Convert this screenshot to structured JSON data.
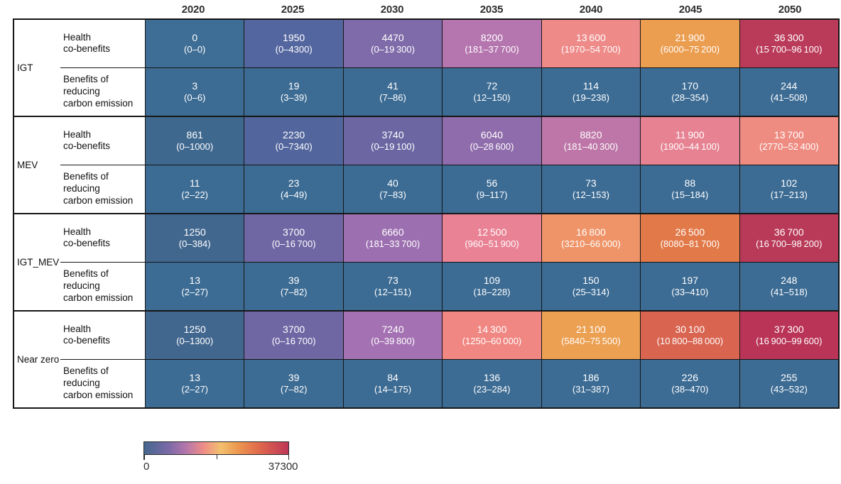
{
  "chart_data": {
    "type": "heatmap",
    "title": "",
    "columns": [
      "2020",
      "2025",
      "2030",
      "2035",
      "2040",
      "2045",
      "2050"
    ],
    "row_groups": [
      {
        "label": "IGT",
        "rows": [
          {
            "label": "Health co-benefits",
            "label_lines": [
              "Health",
              "co-benefits"
            ],
            "cells": [
              {
                "v": 0,
                "value": "0",
                "range": "(0–0)",
                "color": "#3E6D95"
              },
              {
                "v": 1950,
                "value": "1950",
                "range": "(0–4300)",
                "color": "#54669F"
              },
              {
                "v": 4470,
                "value": "4470",
                "range": "(0–19 300)",
                "color": "#7F6BA9"
              },
              {
                "v": 8200,
                "value": "8200",
                "range": "(181–37 700)",
                "color": "#B575AF"
              },
              {
                "v": 13600,
                "value": "13 600",
                "range": "(1970–54 700)",
                "color": "#EE8B89"
              },
              {
                "v": 21900,
                "value": "21 900",
                "range": "(6000–75 200)",
                "color": "#EB9D50"
              },
              {
                "v": 36300,
                "value": "36 300",
                "range": "(15 700–96 100)",
                "color": "#BA3A59"
              }
            ]
          },
          {
            "label": "Benefits of reducing carbon emission",
            "label_lines": [
              "Benefits of",
              "reducing",
              "carbon emission"
            ],
            "cells": [
              {
                "v": 3,
                "value": "3",
                "range": "(0–6)",
                "color": "#3C6B93"
              },
              {
                "v": 19,
                "value": "19",
                "range": "(3–39)",
                "color": "#3C6B93"
              },
              {
                "v": 41,
                "value": "41",
                "range": "(7–86)",
                "color": "#3C6B93"
              },
              {
                "v": 72,
                "value": "72",
                "range": "(12–150)",
                "color": "#3C6B93"
              },
              {
                "v": 114,
                "value": "114",
                "range": "(19–238)",
                "color": "#3C6B93"
              },
              {
                "v": 170,
                "value": "170",
                "range": "(28–354)",
                "color": "#3C6B93"
              },
              {
                "v": 244,
                "value": "244",
                "range": "(41–508)",
                "color": "#3C6B93"
              }
            ]
          }
        ]
      },
      {
        "label": "MEV",
        "rows": [
          {
            "label": "Health co-benefits",
            "label_lines": [
              "Health",
              "co-benefits"
            ],
            "cells": [
              {
                "v": 861,
                "value": "861",
                "range": "(0–1000)",
                "color": "#3F688F"
              },
              {
                "v": 2230,
                "value": "2230",
                "range": "(0–7340)",
                "color": "#52659D"
              },
              {
                "v": 3740,
                "value": "3740",
                "range": "(0–19 100)",
                "color": "#6C67A3"
              },
              {
                "v": 6040,
                "value": "6040",
                "range": "(0–28 600)",
                "color": "#8F6CAB"
              },
              {
                "v": 8820,
                "value": "8820",
                "range": "(181–40 300)",
                "color": "#BD76A7"
              },
              {
                "v": 11900,
                "value": "11 900",
                "range": "(1900–44 100)",
                "color": "#E68292"
              },
              {
                "v": 13700,
                "value": "13 700",
                "range": "(2770–52 400)",
                "color": "#EF8C82"
              }
            ]
          },
          {
            "label": "Benefits of reducing carbon emission",
            "label_lines": [
              "Benefits of",
              "reducing",
              "carbon emission"
            ],
            "cells": [
              {
                "v": 11,
                "value": "11",
                "range": "(2–22)",
                "color": "#3C6B93"
              },
              {
                "v": 23,
                "value": "23",
                "range": "(4–49)",
                "color": "#3C6B93"
              },
              {
                "v": 40,
                "value": "40",
                "range": "(7–83)",
                "color": "#3C6B93"
              },
              {
                "v": 56,
                "value": "56",
                "range": "(9–117)",
                "color": "#3C6B93"
              },
              {
                "v": 73,
                "value": "73",
                "range": "(12–153)",
                "color": "#3C6B93"
              },
              {
                "v": 88,
                "value": "88",
                "range": "(15–184)",
                "color": "#3C6B93"
              },
              {
                "v": 102,
                "value": "102",
                "range": "(17–213)",
                "color": "#3C6B93"
              }
            ]
          }
        ]
      },
      {
        "label": "IGT_MEV",
        "rows": [
          {
            "label": "Health co-benefits",
            "label_lines": [
              "Health",
              "co-benefits"
            ],
            "cells": [
              {
                "v": 1250,
                "value": "1250",
                "range": "(0–384)",
                "color": "#42678F"
              },
              {
                "v": 3700,
                "value": "3700",
                "range": "(0–16 700)",
                "color": "#6F66A4"
              },
              {
                "v": 6660,
                "value": "6660",
                "range": "(181–33 700)",
                "color": "#9C6FB0"
              },
              {
                "v": 12500,
                "value": "12 500",
                "range": "(960–51 900)",
                "color": "#E98295"
              },
              {
                "v": 16800,
                "value": "16 800",
                "range": "(3210–66 000)",
                "color": "#EF9468"
              },
              {
                "v": 26500,
                "value": "26 500",
                "range": "(8080–81 700)",
                "color": "#E27948"
              },
              {
                "v": 36700,
                "value": "36 700",
                "range": "(16 700–98 200)",
                "color": "#B93A58"
              }
            ]
          },
          {
            "label": "Benefits of reducing carbon emission",
            "label_lines": [
              "Benefits of",
              "reducing",
              "carbon emission"
            ],
            "cells": [
              {
                "v": 13,
                "value": "13",
                "range": "(2–27)",
                "color": "#3C6B93"
              },
              {
                "v": 39,
                "value": "39",
                "range": "(7–82)",
                "color": "#3C6B93"
              },
              {
                "v": 73,
                "value": "73",
                "range": "(12–151)",
                "color": "#3C6B93"
              },
              {
                "v": 109,
                "value": "109",
                "range": "(18–228)",
                "color": "#3C6B93"
              },
              {
                "v": 150,
                "value": "150",
                "range": "(25–314)",
                "color": "#3C6B93"
              },
              {
                "v": 197,
                "value": "197",
                "range": "(33–410)",
                "color": "#3C6B93"
              },
              {
                "v": 248,
                "value": "248",
                "range": "(41–518)",
                "color": "#3C6B93"
              }
            ]
          }
        ]
      },
      {
        "label": "Near zero",
        "rows": [
          {
            "label": "Health co-benefits",
            "label_lines": [
              "Health",
              "co-benefits"
            ],
            "cells": [
              {
                "v": 1250,
                "value": "1250",
                "range": "(0–1300)",
                "color": "#42678F"
              },
              {
                "v": 3700,
                "value": "3700",
                "range": "(0–16 700)",
                "color": "#6F66A4"
              },
              {
                "v": 7240,
                "value": "7240",
                "range": "(0–39 800)",
                "color": "#A471B2"
              },
              {
                "v": 14300,
                "value": "14 300",
                "range": "(1250–60 000)",
                "color": "#F08782"
              },
              {
                "v": 21100,
                "value": "21 100",
                "range": "(5840–75 500)",
                "color": "#ECA052"
              },
              {
                "v": 30100,
                "value": "30 100",
                "range": "(10 800–88 000)",
                "color": "#D96450"
              },
              {
                "v": 37300,
                "value": "37 300",
                "range": "(16 900–99 600)",
                "color": "#B93456"
              }
            ]
          },
          {
            "label": "Benefits of reducing carbon emission",
            "label_lines": [
              "Benefits of",
              "reducing",
              "carbon emission"
            ],
            "cells": [
              {
                "v": 13,
                "value": "13",
                "range": "(2–27)",
                "color": "#3C6B93"
              },
              {
                "v": 39,
                "value": "39",
                "range": "(7–82)",
                "color": "#3C6B93"
              },
              {
                "v": 84,
                "value": "84",
                "range": "(14–175)",
                "color": "#3C6B93"
              },
              {
                "v": 136,
                "value": "136",
                "range": "(23–284)",
                "color": "#3C6B93"
              },
              {
                "v": 186,
                "value": "186",
                "range": "(31–387)",
                "color": "#3C6B93"
              },
              {
                "v": 226,
                "value": "226",
                "range": "(38–470)",
                "color": "#3C6B93"
              },
              {
                "v": 255,
                "value": "255",
                "range": "(43–532)",
                "color": "#3C6B93"
              }
            ]
          }
        ]
      }
    ],
    "colorbar": {
      "min": 0,
      "max": 37300,
      "min_label": "0",
      "max_label": "37300",
      "gradient_stops": [
        "#45688F 0%",
        "#7B69A7 17%",
        "#B476AB 29%",
        "#EE8C88 41%",
        "#F3C06E 53%",
        "#EC9B51 64%",
        "#DF684C 80%",
        "#BD3657 100%"
      ]
    },
    "legend_position": "bottom-left",
    "grid": true
  }
}
